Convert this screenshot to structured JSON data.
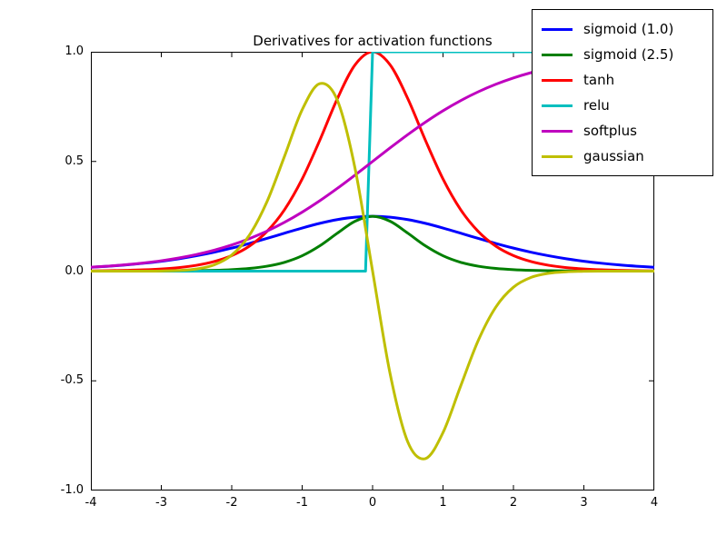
{
  "figure": {
    "title": "Derivatives for activation functions"
  },
  "chart_data": {
    "type": "line",
    "title": "Derivatives for activation functions",
    "xlabel": "",
    "ylabel": "",
    "xlim": [
      -4,
      4
    ],
    "ylim": [
      -1,
      1
    ],
    "grid": false,
    "legend_position": "upper right (overlapping top-right corner of axes)",
    "xticks": [
      -4,
      -3,
      -2,
      -1,
      0,
      1,
      2,
      3,
      4
    ],
    "xtick_labels": [
      "-4",
      "-3",
      "-2",
      "-1",
      "0",
      "1",
      "2",
      "3",
      "4"
    ],
    "yticks": [
      -1.0,
      -0.5,
      0.0,
      0.5,
      1.0
    ],
    "ytick_labels": [
      "-1.0",
      "-0.5",
      "0.0",
      "0.5",
      "1.0"
    ],
    "x": [
      -4,
      -3.75,
      -3.5,
      -3.25,
      -3,
      -2.75,
      -2.5,
      -2.25,
      -2,
      -1.75,
      -1.5,
      -1.25,
      -1,
      -0.75,
      -0.5,
      -0.25,
      0,
      0.25,
      0.5,
      0.75,
      1,
      1.25,
      1.5,
      1.75,
      2,
      2.25,
      2.5,
      2.75,
      3,
      3.25,
      3.5,
      3.75,
      4
    ],
    "series": [
      {
        "name": "sigmoid (1.0)",
        "color": "#0000ff",
        "smooth": true,
        "y": [
          0.0177,
          0.0225,
          0.0284,
          0.036,
          0.0452,
          0.0565,
          0.0701,
          0.0862,
          0.105,
          0.1262,
          0.1491,
          0.1731,
          0.1966,
          0.2179,
          0.235,
          0.2461,
          0.25,
          0.2461,
          0.235,
          0.2179,
          0.1966,
          0.1731,
          0.1491,
          0.1262,
          0.105,
          0.0862,
          0.0701,
          0.0565,
          0.0452,
          0.036,
          0.0284,
          0.0225,
          0.0177
        ]
      },
      {
        "name": "sigmoid (2.5)",
        "color": "#007f00",
        "smooth": true,
        "y": [
          0.0,
          0.0001,
          0.0002,
          0.0003,
          0.0006,
          0.001,
          0.0019,
          0.0036,
          0.0067,
          0.0123,
          0.0225,
          0.0403,
          0.0701,
          0.1153,
          0.1731,
          0.2271,
          0.25,
          0.2271,
          0.1731,
          0.1153,
          0.0701,
          0.0403,
          0.0225,
          0.0123,
          0.0067,
          0.0036,
          0.0019,
          0.001,
          0.0006,
          0.0003,
          0.0002,
          0.0001,
          0.0
        ]
      },
      {
        "name": "tanh",
        "color": "#ff0000",
        "smooth": true,
        "y": [
          0.0013,
          0.0022,
          0.0037,
          0.006,
          0.0099,
          0.0162,
          0.0266,
          0.0435,
          0.0707,
          0.1138,
          0.1808,
          0.2804,
          0.42,
          0.5966,
          0.7864,
          0.94,
          1.0,
          0.94,
          0.7864,
          0.5966,
          0.42,
          0.2804,
          0.1808,
          0.1138,
          0.0707,
          0.0435,
          0.0266,
          0.0162,
          0.0099,
          0.006,
          0.0037,
          0.0022,
          0.0013
        ]
      },
      {
        "name": "relu",
        "color": "#00bfbf",
        "smooth": false,
        "x": [
          -4,
          -0.1,
          0,
          4
        ],
        "y": [
          0,
          0,
          1,
          1
        ]
      },
      {
        "name": "softplus",
        "color": "#bf00bf",
        "smooth": true,
        "y": [
          0.018,
          0.023,
          0.0293,
          0.0374,
          0.0474,
          0.0601,
          0.0759,
          0.0953,
          0.1192,
          0.1481,
          0.1824,
          0.2227,
          0.2689,
          0.3208,
          0.3775,
          0.4378,
          0.5,
          0.5622,
          0.6225,
          0.6792,
          0.7311,
          0.7773,
          0.8176,
          0.8519,
          0.8808,
          0.9047,
          0.9241,
          0.9399,
          0.9526,
          0.9626,
          0.9707,
          0.977,
          0.982
        ]
      },
      {
        "name": "gaussian",
        "color": "#bfbf00",
        "smooth": true,
        "y": [
          0.0,
          0.0,
          0.0001,
          0.0002,
          0.0007,
          0.0029,
          0.0097,
          0.0285,
          0.0733,
          0.1637,
          0.3162,
          0.5241,
          0.7358,
          0.8546,
          0.7788,
          0.4697,
          0.0,
          -0.4697,
          -0.7788,
          -0.8546,
          -0.7358,
          -0.5241,
          -0.3162,
          -0.1637,
          -0.0733,
          -0.0285,
          -0.0097,
          -0.0029,
          -0.0007,
          -0.0002,
          -0.0001,
          0.0,
          0.0
        ]
      }
    ],
    "line_width": 3,
    "frame_color": "#000000",
    "background_color": "#ffffff"
  }
}
